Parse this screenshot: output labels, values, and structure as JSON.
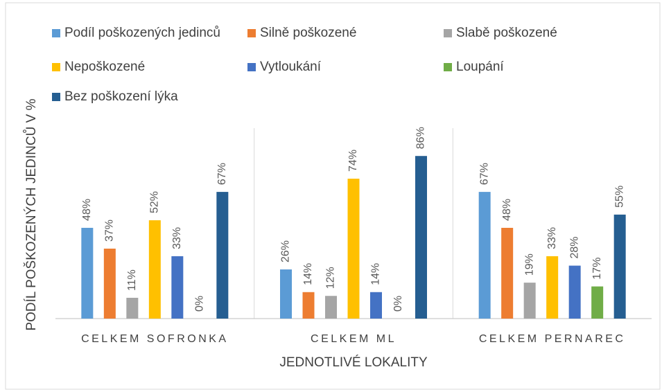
{
  "chart_data": {
    "type": "bar",
    "y_axis_label": "PODÍL POŠKOZENÝCH JEDINCŮ V %",
    "x_axis_label": "JEDNOTLIVÉ LOKALITY",
    "categories": [
      "CELKEM SOFRONKA",
      "CELKEM ML",
      "CELKEM PERNAREC"
    ],
    "ylim": [
      0,
      100
    ],
    "series": [
      {
        "name": "Podíl poškozených jedinců",
        "color": "#5b9bd5",
        "values": [
          48,
          26,
          67
        ],
        "value_labels": [
          "48%",
          "26%",
          "67%"
        ]
      },
      {
        "name": "Silně poškozené",
        "color": "#ed7d31",
        "values": [
          37,
          14,
          48
        ],
        "value_labels": [
          "37%",
          "14%",
          "48%"
        ]
      },
      {
        "name": "Slabě poškozené",
        "color": "#a5a5a5",
        "values": [
          11,
          12,
          19
        ],
        "value_labels": [
          "11%",
          "12%",
          "19%"
        ]
      },
      {
        "name": "Nepoškozené",
        "color": "#ffc000",
        "values": [
          52,
          74,
          33
        ],
        "value_labels": [
          "52%",
          "74%",
          "33%"
        ]
      },
      {
        "name": "Vytloukání",
        "color": "#4472c4",
        "values": [
          33,
          14,
          28
        ],
        "value_labels": [
          "33%",
          "14%",
          "28%"
        ]
      },
      {
        "name": "Loupání",
        "color": "#70ad47",
        "values": [
          0,
          0,
          17
        ],
        "value_labels": [
          "0%",
          "0%",
          "17%"
        ]
      },
      {
        "name": "Bez poškození lýka",
        "color": "#255e91",
        "values": [
          67,
          86,
          55
        ],
        "value_labels": [
          "67%",
          "86%",
          "55%"
        ]
      }
    ]
  }
}
